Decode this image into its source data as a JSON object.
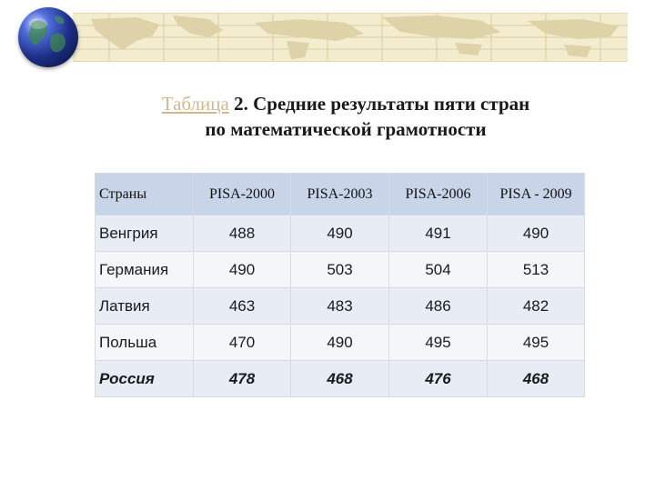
{
  "decor": {
    "banner_icon": "world-map-banner",
    "globe_icon": "globe-icon",
    "banner_color": "#f3eccf",
    "header_color": "#c8d5e9",
    "row_odd_color": "#e7ecf5",
    "row_even_color": "#f4f6fa"
  },
  "title": {
    "link_word": "Таблица",
    "rest_line1": " 2. Средние результаты пяти стран",
    "line2": "по математической грамотности"
  },
  "table": {
    "headers": [
      "Страны",
      "PISA-2000",
      "PISA-2003",
      "PISA-2006",
      "PISA - 2009"
    ],
    "rows": [
      {
        "country": "Венгрия",
        "values": [
          "488",
          "490",
          "491",
          "490"
        ]
      },
      {
        "country": "Германия",
        "values": [
          "490",
          "503",
          "504",
          "513"
        ]
      },
      {
        "country": "Латвия",
        "values": [
          "463",
          "483",
          "486",
          "482"
        ]
      },
      {
        "country": "Польша",
        "values": [
          "470",
          "490",
          "495",
          "495"
        ]
      },
      {
        "country": "Россия",
        "values": [
          "478",
          "468",
          "476",
          "468"
        ]
      }
    ]
  }
}
